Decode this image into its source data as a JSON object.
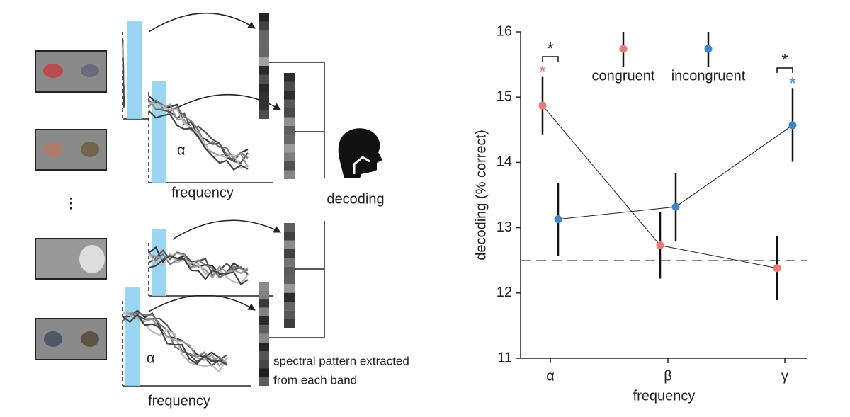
{
  "chart_data": {
    "type": "errorbar",
    "categories": [
      "α",
      "β",
      "γ"
    ],
    "xlabel": "frequency",
    "ylabel": "decoding (% correct)",
    "ylim": [
      11,
      16
    ],
    "yticks": [
      11,
      12,
      13,
      14,
      15,
      16
    ],
    "reference_line": 12.5,
    "series": [
      {
        "name": "congruent",
        "color": "#ea7a76",
        "values": [
          14.87,
          12.73,
          12.38
        ],
        "errors": [
          0.44,
          0.51,
          0.49
        ]
      },
      {
        "name": "incongruent",
        "color": "#3f86c8",
        "values": [
          13.13,
          13.32,
          14.57
        ],
        "errors": [
          0.56,
          0.52,
          0.56
        ]
      }
    ],
    "annotations": [
      {
        "text": "*",
        "category": 0,
        "kind": "bracket"
      },
      {
        "text": "*",
        "category": 0,
        "series": 0
      },
      {
        "text": "*",
        "category": 2,
        "kind": "bracket"
      },
      {
        "text": "*",
        "category": 2,
        "series": 1
      }
    ]
  },
  "diagram": {
    "band_labels": [
      "α",
      "α"
    ],
    "axis_labels": [
      "frequency",
      "frequency"
    ],
    "output_label": "decoding",
    "ellipsis": "⋮",
    "note_lines": [
      "spectral pattern extracted",
      "from each band"
    ]
  }
}
